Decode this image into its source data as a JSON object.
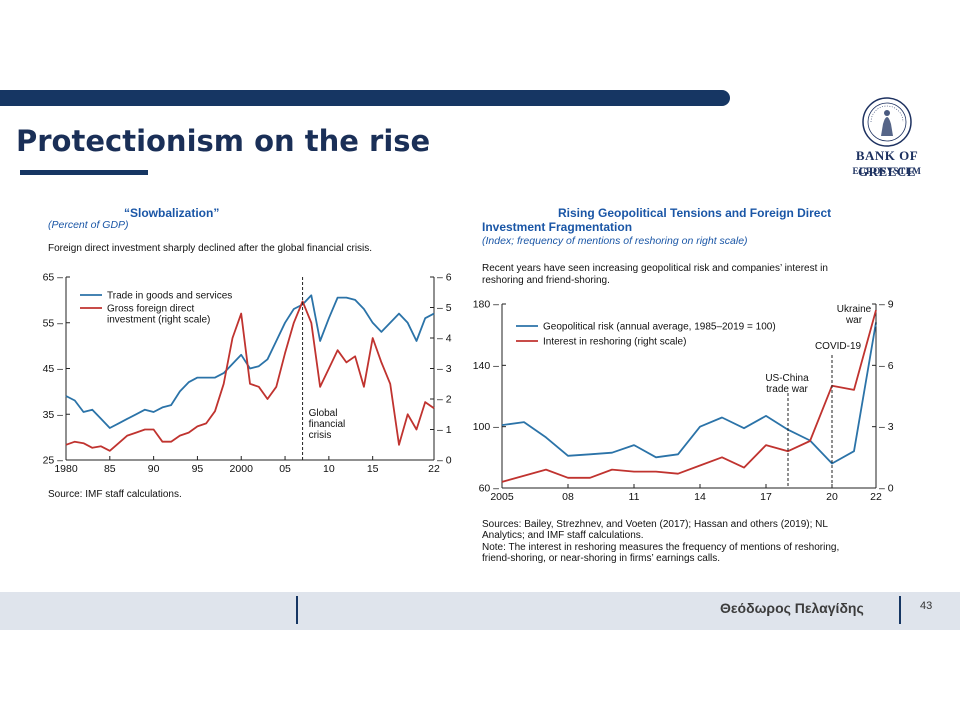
{
  "slide": {
    "title": "Protectionism on the rise",
    "logo_name": "BANK OF GREECE",
    "logo_sub": "EUROSYSTEM",
    "author": "Θεόδωρος Πελαγίδης",
    "page_number": "43"
  },
  "colors": {
    "navy": "#163663",
    "title_blue": "#1a56a6",
    "series_blue": "#2b73a8",
    "series_red": "#c0332f"
  },
  "chart_data": [
    {
      "type": "line",
      "title": "“Slowbalization”",
      "subtitle": "(Percent of GDP)",
      "description": "Foreign direct investment sharply declined after the global financial crisis.",
      "source": "Source: IMF staff calculations.",
      "xlim": [
        1980,
        2022
      ],
      "ylim": [
        25,
        65
      ],
      "y2lim": [
        0,
        6
      ],
      "x_ticks": [
        1980,
        1985,
        1990,
        1995,
        2000,
        2005,
        2010,
        2015,
        2022
      ],
      "x_tick_labels": [
        "1980",
        "85",
        "90",
        "95",
        "2000",
        "05",
        "10",
        "15",
        "22"
      ],
      "y_ticks": [
        25,
        35,
        45,
        55,
        65
      ],
      "y2_ticks": [
        0,
        1,
        2,
        3,
        4,
        5,
        6
      ],
      "annotation": {
        "x": 2007,
        "lines": [
          "Global",
          "financial",
          "crisis"
        ]
      },
      "series": [
        {
          "name": "Trade in goods and services",
          "color": "#2b73a8",
          "axis": "left",
          "x": [
            1980,
            1981,
            1982,
            1983,
            1984,
            1985,
            1986,
            1987,
            1988,
            1989,
            1990,
            1991,
            1992,
            1993,
            1994,
            1995,
            1996,
            1997,
            1998,
            1999,
            2000,
            2001,
            2002,
            2003,
            2004,
            2005,
            2006,
            2007,
            2008,
            2009,
            2010,
            2011,
            2012,
            2013,
            2014,
            2015,
            2016,
            2017,
            2018,
            2019,
            2020,
            2021,
            2022
          ],
          "y": [
            39,
            38,
            35.5,
            36,
            34,
            32,
            33,
            34,
            35,
            36,
            35.5,
            36.5,
            37,
            40,
            42,
            43,
            43,
            43,
            44,
            46,
            48,
            45,
            45.5,
            47,
            51,
            55,
            58,
            59,
            61,
            51,
            56,
            60.5,
            60.5,
            60,
            58,
            55,
            53,
            55,
            57,
            55,
            51,
            56,
            57
          ]
        },
        {
          "name": "Gross foreign direct investment (right scale)",
          "color": "#c0332f",
          "axis": "right",
          "x": [
            1980,
            1981,
            1982,
            1983,
            1984,
            1985,
            1986,
            1987,
            1988,
            1989,
            1990,
            1991,
            1992,
            1993,
            1994,
            1995,
            1996,
            1997,
            1998,
            1999,
            2000,
            2001,
            2002,
            2003,
            2004,
            2005,
            2006,
            2007,
            2008,
            2009,
            2010,
            2011,
            2012,
            2013,
            2014,
            2015,
            2016,
            2017,
            2018,
            2019,
            2020,
            2021,
            2022
          ],
          "y": [
            0.5,
            0.6,
            0.55,
            0.4,
            0.45,
            0.3,
            0.55,
            0.8,
            0.9,
            1.0,
            1.0,
            0.6,
            0.6,
            0.8,
            0.9,
            1.1,
            1.2,
            1.6,
            2.5,
            4.0,
            4.8,
            2.5,
            2.4,
            2.0,
            2.4,
            3.5,
            4.5,
            5.2,
            4.5,
            2.4,
            3.0,
            3.6,
            3.2,
            3.4,
            2.4,
            4.0,
            3.2,
            2.5,
            0.5,
            1.5,
            1.0,
            1.9,
            1.7
          ]
        }
      ]
    },
    {
      "type": "line",
      "title_lines": [
        "Rising Geopolitical Tensions and Foreign Direct",
        "Investment Fragmentation"
      ],
      "subtitle": "(Index; frequency of mentions of reshoring on right scale)",
      "description_lines": [
        "Recent years have seen increasing geopolitical risk and companies’ interest in",
        "reshoring and friend-shoring."
      ],
      "source_lines": [
        "Sources: Bailey, Strezhnev, and Voeten (2017); Hassan and others (2019); NL",
        "Analytics; and IMF staff calculations.",
        "Note: The interest in reshoring measures the frequency of mentions of reshoring,",
        "friend-shoring, or near-shoring in firms’ earnings calls."
      ],
      "xlim": [
        2005,
        2022
      ],
      "ylim": [
        60,
        180
      ],
      "y2lim": [
        0,
        9
      ],
      "x_ticks": [
        2005,
        2008,
        2011,
        2014,
        2017,
        2020,
        2022
      ],
      "x_tick_labels": [
        "2005",
        "08",
        "11",
        "14",
        "17",
        "20",
        "22"
      ],
      "y_ticks": [
        60,
        100,
        140,
        180
      ],
      "y2_ticks": [
        0,
        3,
        6,
        9
      ],
      "annotations": [
        {
          "x": 2018,
          "lines": [
            "US-China",
            "trade war"
          ]
        },
        {
          "x": 2020,
          "lines": [
            "COVID-19"
          ]
        },
        {
          "x": 2022,
          "lines": [
            "Ukraine",
            "war"
          ]
        }
      ],
      "series": [
        {
          "name": "Geopolitical risk (annual average, 1985–2019 = 100)",
          "color": "#2b73a8",
          "axis": "left",
          "x": [
            2005,
            2006,
            2007,
            2008,
            2009,
            2010,
            2011,
            2012,
            2013,
            2014,
            2015,
            2016,
            2017,
            2018,
            2019,
            2020,
            2021,
            2022
          ],
          "y": [
            101,
            103,
            93,
            81,
            82,
            83,
            88,
            80,
            82,
            100,
            106,
            99,
            107,
            98,
            91,
            76,
            84,
            168
          ]
        },
        {
          "name": "Interest in reshoring (right scale)",
          "color": "#c0332f",
          "axis": "right",
          "x": [
            2005,
            2006,
            2007,
            2008,
            2009,
            2010,
            2011,
            2012,
            2013,
            2014,
            2015,
            2016,
            2017,
            2018,
            2019,
            2020,
            2021,
            2022
          ],
          "y": [
            0.3,
            0.6,
            0.9,
            0.5,
            0.5,
            0.9,
            0.8,
            0.8,
            0.7,
            1.1,
            1.5,
            1.0,
            2.1,
            1.8,
            2.3,
            5.0,
            4.8,
            8.7
          ]
        }
      ]
    }
  ]
}
